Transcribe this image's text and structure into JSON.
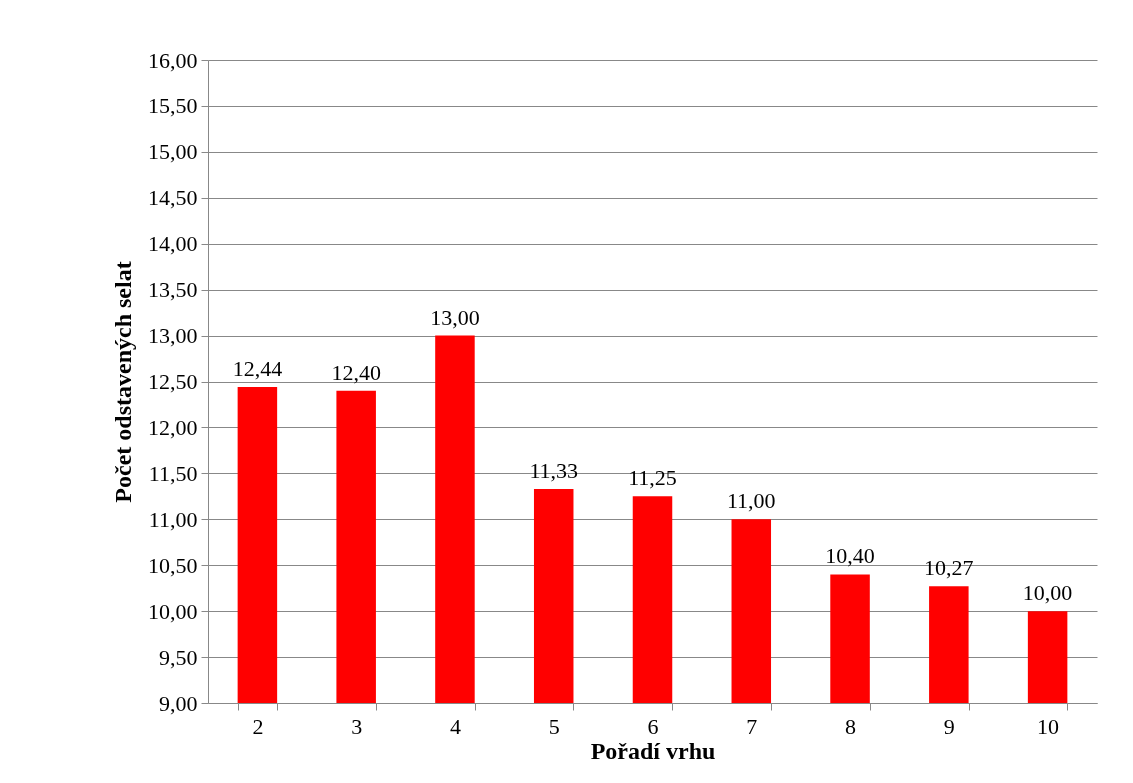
{
  "chart_data": {
    "type": "bar",
    "xlabel": "Pořadí vrhu",
    "ylabel": "Počet odstavených selat",
    "categories": [
      "2",
      "3",
      "4",
      "5",
      "6",
      "7",
      "8",
      "9",
      "10"
    ],
    "values": [
      12.44,
      12.4,
      13.0,
      11.33,
      11.25,
      11.0,
      10.4,
      10.27,
      10.0
    ],
    "value_labels": [
      "12,44",
      "12,40",
      "13,00",
      "11,33",
      "11,25",
      "11,00",
      "10,40",
      "10,27",
      "10,00"
    ],
    "color": "#ff0000",
    "ylim": [
      9,
      16
    ],
    "yticks": [
      {
        "value": 9,
        "label": "9,00"
      },
      {
        "value": 9.5,
        "label": "9,50"
      },
      {
        "value": 10,
        "label": "10,00"
      },
      {
        "value": 10.5,
        "label": "10,50"
      },
      {
        "value": 11,
        "label": "11,00"
      },
      {
        "value": 11.5,
        "label": "11,50"
      },
      {
        "value": 12,
        "label": "12,00"
      },
      {
        "value": 12.5,
        "label": "12,50"
      },
      {
        "value": 13,
        "label": "13,00"
      },
      {
        "value": 13.5,
        "label": "13,50"
      },
      {
        "value": 14,
        "label": "14,00"
      },
      {
        "value": 14.5,
        "label": "14,50"
      },
      {
        "value": 15,
        "label": "15,00"
      },
      {
        "value": 15.5,
        "label": "15,50"
      },
      {
        "value": 16,
        "label": "16,00"
      }
    ],
    "grid": "y"
  }
}
